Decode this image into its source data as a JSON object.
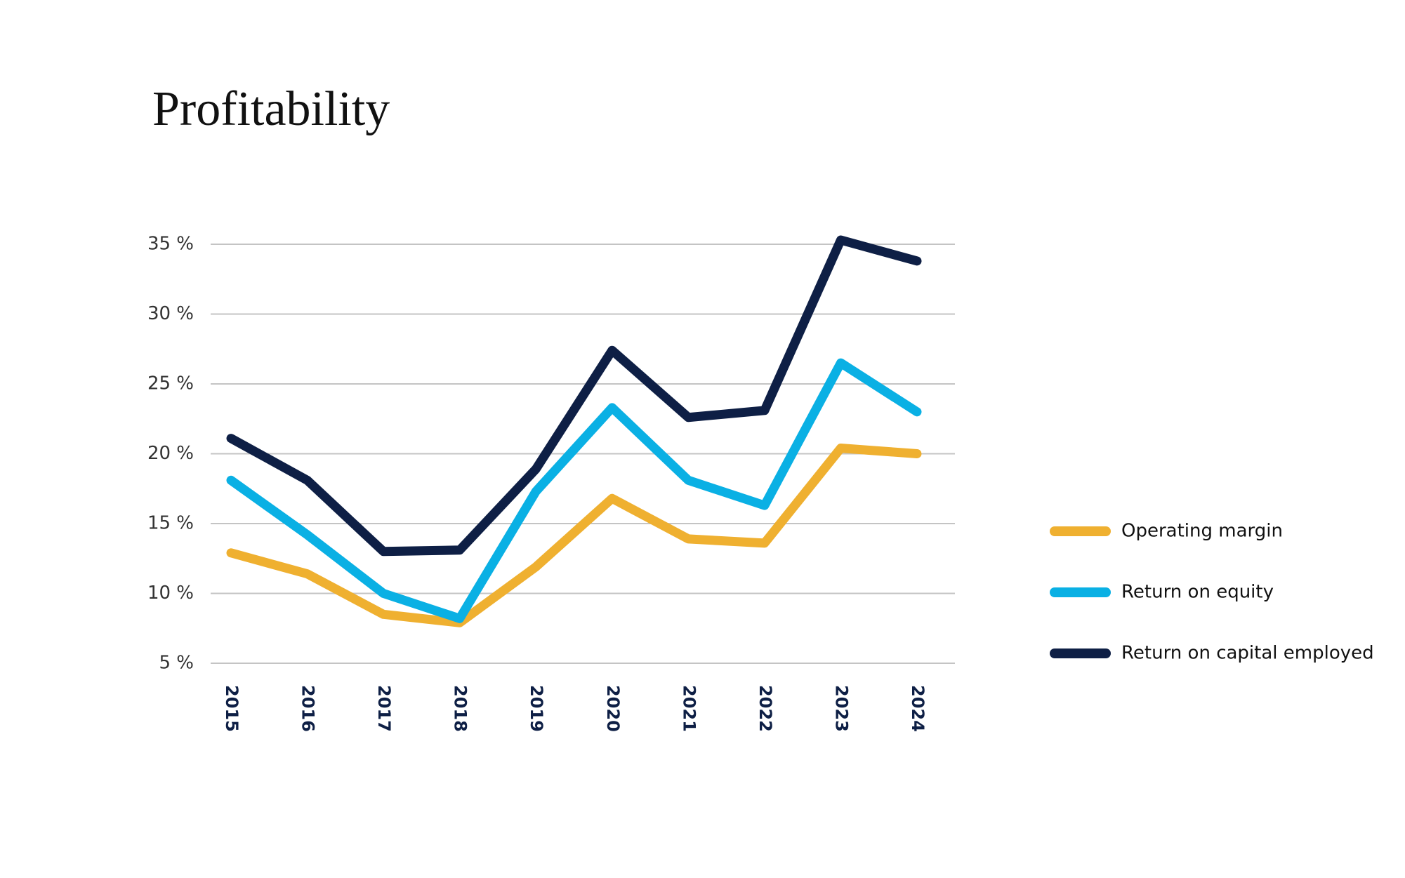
{
  "chart_data": {
    "type": "line",
    "title": "Profitability",
    "categories": [
      "2015",
      "2016",
      "2017",
      "2018",
      "2019",
      "2020",
      "2021",
      "2022",
      "2023",
      "2024"
    ],
    "series": [
      {
        "name": "Operating margin",
        "color": "#efb030",
        "values": [
          12.9,
          11.4,
          8.5,
          7.9,
          11.9,
          16.8,
          13.9,
          13.6,
          20.4,
          20.0
        ]
      },
      {
        "name": "Return on equity",
        "color": "#0ab0e4",
        "values": [
          18.1,
          14.2,
          10.0,
          8.2,
          17.3,
          23.3,
          18.1,
          16.3,
          26.5,
          23.0
        ]
      },
      {
        "name": "Return on capital employed",
        "color": "#0e1f45",
        "values": [
          21.1,
          18.1,
          13.0,
          13.1,
          18.9,
          27.4,
          22.6,
          23.1,
          35.3,
          33.8
        ]
      }
    ],
    "ylim": [
      5,
      35
    ],
    "yticks": [
      {
        "value": 5,
        "label": "5 %"
      },
      {
        "value": 10,
        "label": "10 %"
      },
      {
        "value": 15,
        "label": "15 %"
      },
      {
        "value": 20,
        "label": "20 %"
      },
      {
        "value": 25,
        "label": "25 %"
      },
      {
        "value": 30,
        "label": "30 %"
      },
      {
        "value": 35,
        "label": "35 %"
      }
    ],
    "grid": true,
    "legend": "right"
  }
}
